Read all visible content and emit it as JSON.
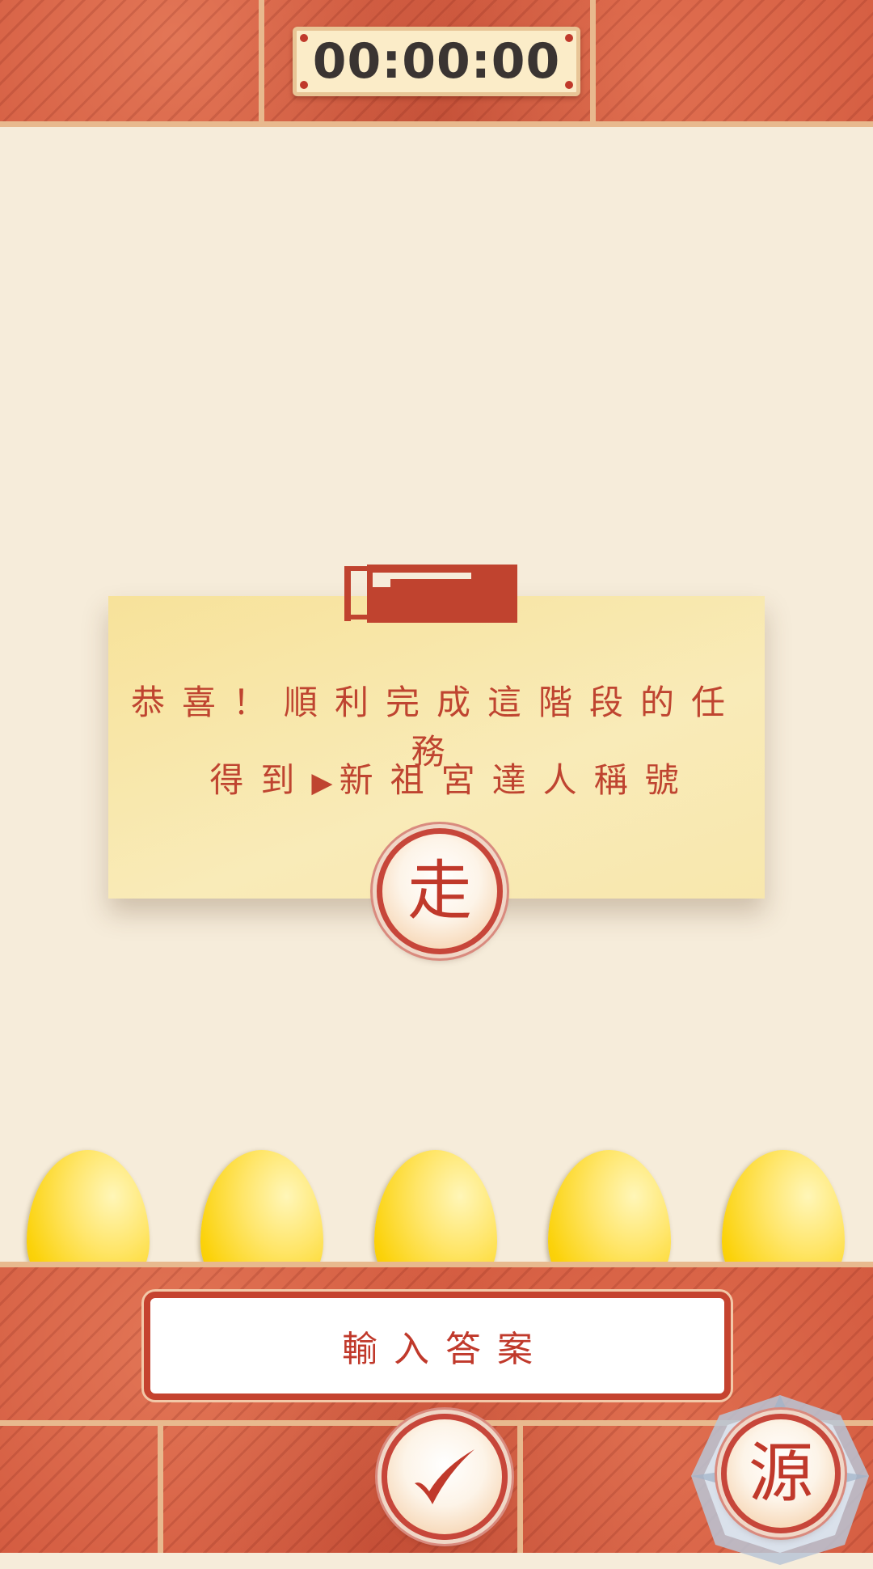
{
  "timer": {
    "value": "00:00:00"
  },
  "card": {
    "line1": "恭喜！順利完成這階段的任務",
    "line2_prefix": "得到",
    "line2_arrow": "▶",
    "line2_title": "新祖宮達人稱號"
  },
  "buttons": {
    "go_label": "走",
    "source_label": "源"
  },
  "answer": {
    "placeholder": "輸入答案"
  },
  "eggs": {
    "count": 5
  },
  "colors": {
    "accent": "#c0392b",
    "egg": "#fbd20a",
    "card": "#f8e7ad",
    "background": "#f6ecda"
  }
}
